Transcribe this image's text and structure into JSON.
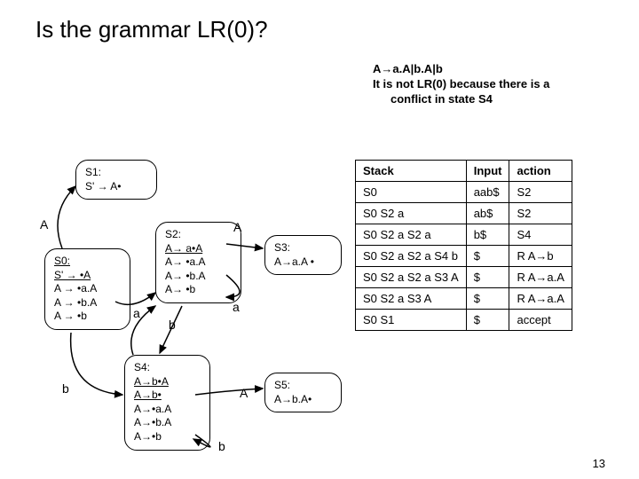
{
  "title": "Is the grammar LR(0)?",
  "header_note": {
    "line1": "A→a.A|b.A|b",
    "line2": "It is not LR(0) because there is a",
    "line3": "conflict in state S4"
  },
  "states": {
    "s0": {
      "head": "S0:",
      "l1": "S' → •A",
      "l2": "A → •a.A",
      "l3": "A → •b.A",
      "l4": "A → •b"
    },
    "s1": {
      "head": "S1:",
      "l1": "S' → A•"
    },
    "s2": {
      "head": "S2:",
      "l1": "A→ a•A",
      "l2": "A→ •a.A",
      "l3": "A→ •b.A",
      "l4": "A→ •b"
    },
    "s3": {
      "head": "S3:",
      "l1": "A→a.A •"
    },
    "s4": {
      "head": "S4:",
      "l1": "A→b•A",
      "l2": "A→b•",
      "l3": "A→•a.A",
      "l4": "A→•b.A",
      "l5": "A→•b"
    },
    "s5": {
      "head": "S5:",
      "l1": "A→b.A•"
    }
  },
  "edge_labels": {
    "A1": "A",
    "A2": "A",
    "A3": "A",
    "a1": "a",
    "a2": "a",
    "b1": "b",
    "b2": "b",
    "b3": "b"
  },
  "table": {
    "headers": [
      "Stack",
      "Input",
      "action"
    ],
    "rows": [
      [
        "S0",
        "aab$",
        "S2"
      ],
      [
        "S0 S2 a",
        "ab$",
        "S2"
      ],
      [
        "S0 S2 a S2 a",
        "b$",
        "S4"
      ],
      [
        "S0 S2 a S2 a S4 b",
        "$",
        "R A→b"
      ],
      [
        "S0 S2 a S2 a S3 A",
        "$",
        "R A→a.A"
      ],
      [
        "S0 S2 a S3 A",
        "$",
        "R A→a.A"
      ],
      [
        "S0 S1",
        "$",
        "accept"
      ]
    ]
  },
  "slidenum": "13"
}
